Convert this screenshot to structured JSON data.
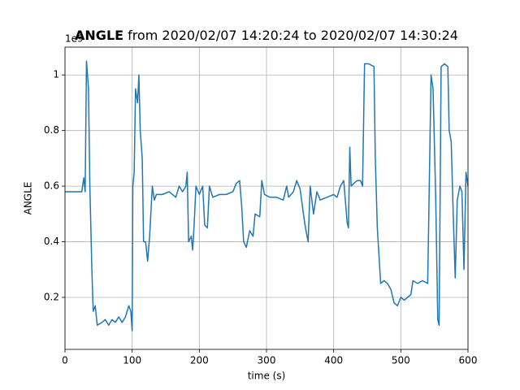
{
  "chart_data": {
    "type": "line",
    "title": "ANGLE",
    "subtitle": "from 2020/02/07 14:20:24 to 2020/02/07 14:30:24",
    "x_label": "time (s)",
    "y_label": "ANGLE",
    "y_offset_label": "1e9",
    "xlim": [
      0,
      600
    ],
    "ylim": [
      0.013,
      1.1
    ],
    "xticks": [
      0,
      100,
      200,
      300,
      400,
      500,
      600
    ],
    "yticks": [
      0.2,
      0.4,
      0.6,
      0.8,
      1.0
    ],
    "grid": true,
    "x": [
      0,
      25,
      28,
      30,
      32,
      35,
      37,
      40,
      42,
      45,
      48,
      55,
      60,
      65,
      70,
      75,
      80,
      85,
      90,
      95,
      98,
      100,
      101,
      103,
      105,
      108,
      110,
      112,
      115,
      117,
      120,
      123,
      126,
      130,
      133,
      136,
      145,
      155,
      165,
      170,
      175,
      180,
      182,
      184,
      188,
      190,
      192,
      195,
      200,
      205,
      208,
      212,
      215,
      220,
      230,
      240,
      250,
      255,
      260,
      263,
      266,
      270,
      275,
      280,
      283,
      290,
      293,
      297,
      305,
      315,
      325,
      330,
      333,
      340,
      345,
      350,
      355,
      358,
      362,
      365,
      370,
      375,
      380,
      390,
      400,
      405,
      410,
      415,
      420,
      422,
      424,
      426,
      430,
      435,
      440,
      443,
      446,
      452,
      460,
      462,
      465,
      468,
      470,
      475,
      480,
      485,
      490,
      495,
      500,
      505,
      510,
      515,
      518,
      525,
      532,
      540,
      545,
      548,
      552,
      555,
      557,
      560,
      565,
      570,
      572,
      575,
      578,
      581,
      584,
      588,
      591,
      594,
      597,
      600
    ],
    "series": [
      {
        "name": "ANGLE",
        "color": "#1f77b4",
        "values": [
          0.58,
          0.58,
          0.63,
          0.58,
          1.05,
          0.95,
          0.6,
          0.3,
          0.15,
          0.17,
          0.1,
          0.11,
          0.12,
          0.1,
          0.12,
          0.11,
          0.13,
          0.11,
          0.13,
          0.17,
          0.15,
          0.08,
          0.6,
          0.65,
          0.95,
          0.9,
          1.0,
          0.8,
          0.7,
          0.4,
          0.4,
          0.33,
          0.42,
          0.6,
          0.55,
          0.57,
          0.57,
          0.58,
          0.56,
          0.6,
          0.58,
          0.6,
          0.65,
          0.4,
          0.42,
          0.37,
          0.45,
          0.6,
          0.57,
          0.6,
          0.46,
          0.45,
          0.6,
          0.56,
          0.57,
          0.57,
          0.58,
          0.61,
          0.62,
          0.53,
          0.4,
          0.38,
          0.44,
          0.42,
          0.5,
          0.49,
          0.62,
          0.57,
          0.56,
          0.56,
          0.55,
          0.6,
          0.56,
          0.58,
          0.62,
          0.59,
          0.5,
          0.45,
          0.4,
          0.6,
          0.5,
          0.58,
          0.55,
          0.56,
          0.57,
          0.56,
          0.6,
          0.62,
          0.47,
          0.45,
          0.74,
          0.6,
          0.61,
          0.62,
          0.62,
          0.6,
          1.04,
          1.04,
          1.03,
          0.7,
          0.45,
          0.33,
          0.25,
          0.26,
          0.25,
          0.23,
          0.18,
          0.17,
          0.2,
          0.19,
          0.2,
          0.21,
          0.26,
          0.25,
          0.26,
          0.25,
          1.0,
          0.95,
          0.55,
          0.12,
          0.1,
          1.03,
          1.04,
          1.03,
          0.8,
          0.76,
          0.5,
          0.27,
          0.55,
          0.6,
          0.58,
          0.3,
          0.65,
          0.6
        ]
      }
    ]
  }
}
